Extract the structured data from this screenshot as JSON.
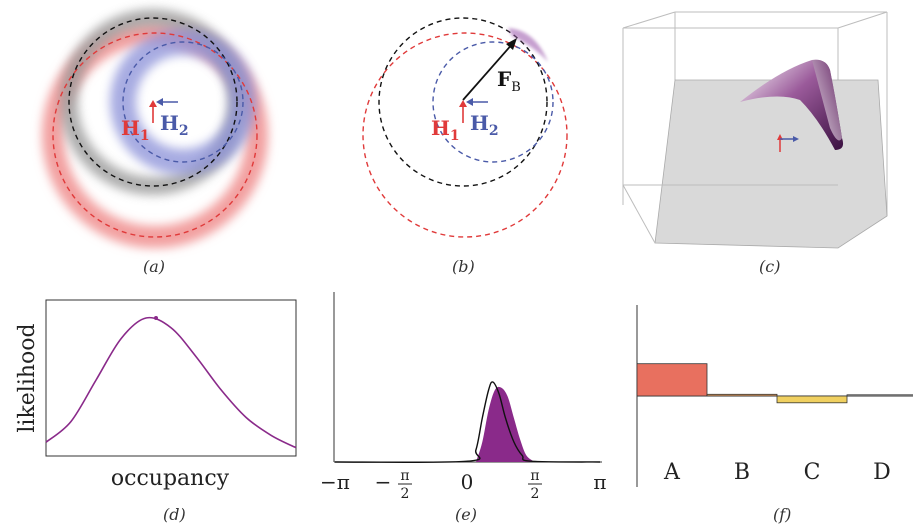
{
  "captions": {
    "a": "(a)",
    "b": "(b)",
    "c": "(c)",
    "d": "(d)",
    "e": "(e)",
    "f": "(f)"
  },
  "panel_a": {
    "h1": "H",
    "h1_sub": "1",
    "h2": "H",
    "h2_sub": "2"
  },
  "panel_b": {
    "h1": "H",
    "h1_sub": "1",
    "h2": "H",
    "h2_sub": "2",
    "force": "F",
    "force_sub": "B"
  },
  "colors": {
    "red": "#e03a3a",
    "blue": "#4a5aa8",
    "black": "#111111",
    "purple": "#8a2a8a",
    "salmon": "#e8705f",
    "yellow": "#f0d060",
    "gray_plane": "#d9d9d9"
  },
  "chart_data": [
    {
      "type": "line",
      "panel": "d",
      "xlabel": "occupancy",
      "ylabel": "likelihood",
      "x": [
        0,
        0.1,
        0.2,
        0.3,
        0.4,
        0.5,
        0.6,
        0.7,
        0.8,
        0.9,
        1.0
      ],
      "y": [
        0.1,
        0.25,
        0.55,
        0.85,
        1.0,
        0.93,
        0.72,
        0.48,
        0.28,
        0.15,
        0.06
      ],
      "peak": {
        "x": 0.44,
        "y": 1.0
      }
    },
    {
      "type": "area",
      "panel": "e",
      "xticks": [
        "−π",
        "−",
        "π",
        "2",
        "0",
        "π",
        "2",
        "π"
      ],
      "xlim": [
        -3.1416,
        3.1416
      ],
      "series": [
        {
          "kind": "line",
          "x": [
            0.0,
            0.2,
            0.35,
            0.5,
            0.6,
            0.75,
            0.9,
            1.1,
            1.3,
            1.5
          ],
          "y": [
            0.01,
            0.15,
            0.55,
            0.9,
            1.0,
            0.85,
            0.55,
            0.25,
            0.08,
            0.01
          ]
        },
        {
          "kind": "area",
          "x": [
            0.2,
            0.35,
            0.5,
            0.65,
            0.8,
            0.95,
            1.1,
            1.25,
            1.4,
            1.6
          ],
          "y": [
            0.0,
            0.25,
            0.65,
            0.9,
            0.93,
            0.82,
            0.55,
            0.28,
            0.08,
            0.0
          ]
        }
      ]
    },
    {
      "type": "bar",
      "panel": "f",
      "categories": [
        "A",
        "B",
        "C",
        "D"
      ],
      "values": [
        0.38,
        0.02,
        -0.08,
        0.0
      ],
      "colors": [
        "#e8705f",
        "#e8a060",
        "#f0d060",
        "#cccccc"
      ],
      "ylim": [
        -1.0,
        1.0
      ]
    }
  ]
}
